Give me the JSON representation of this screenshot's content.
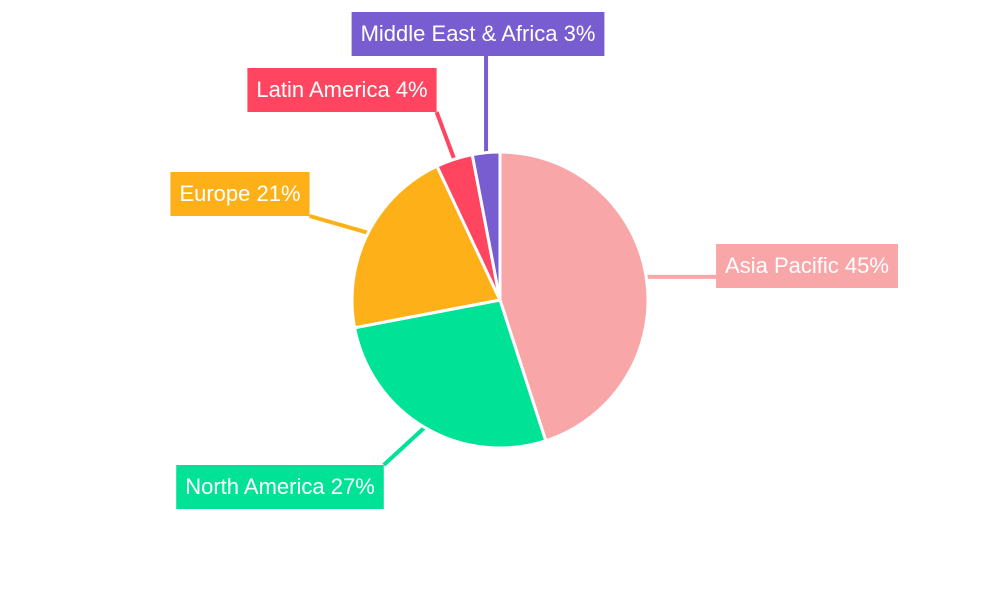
{
  "chart_data": {
    "type": "pie",
    "categories": [
      "Asia Pacific",
      "North America",
      "Europe",
      "Latin America",
      "Middle East & Africa"
    ],
    "values": [
      45,
      27,
      21,
      4,
      3
    ],
    "value_labels": [
      "45%",
      "27%",
      "21%",
      "4%",
      "3%"
    ],
    "colors": [
      "#f9a6a8",
      "#00e396",
      "#feb019",
      "#ff4560",
      "#775dd0"
    ]
  }
}
